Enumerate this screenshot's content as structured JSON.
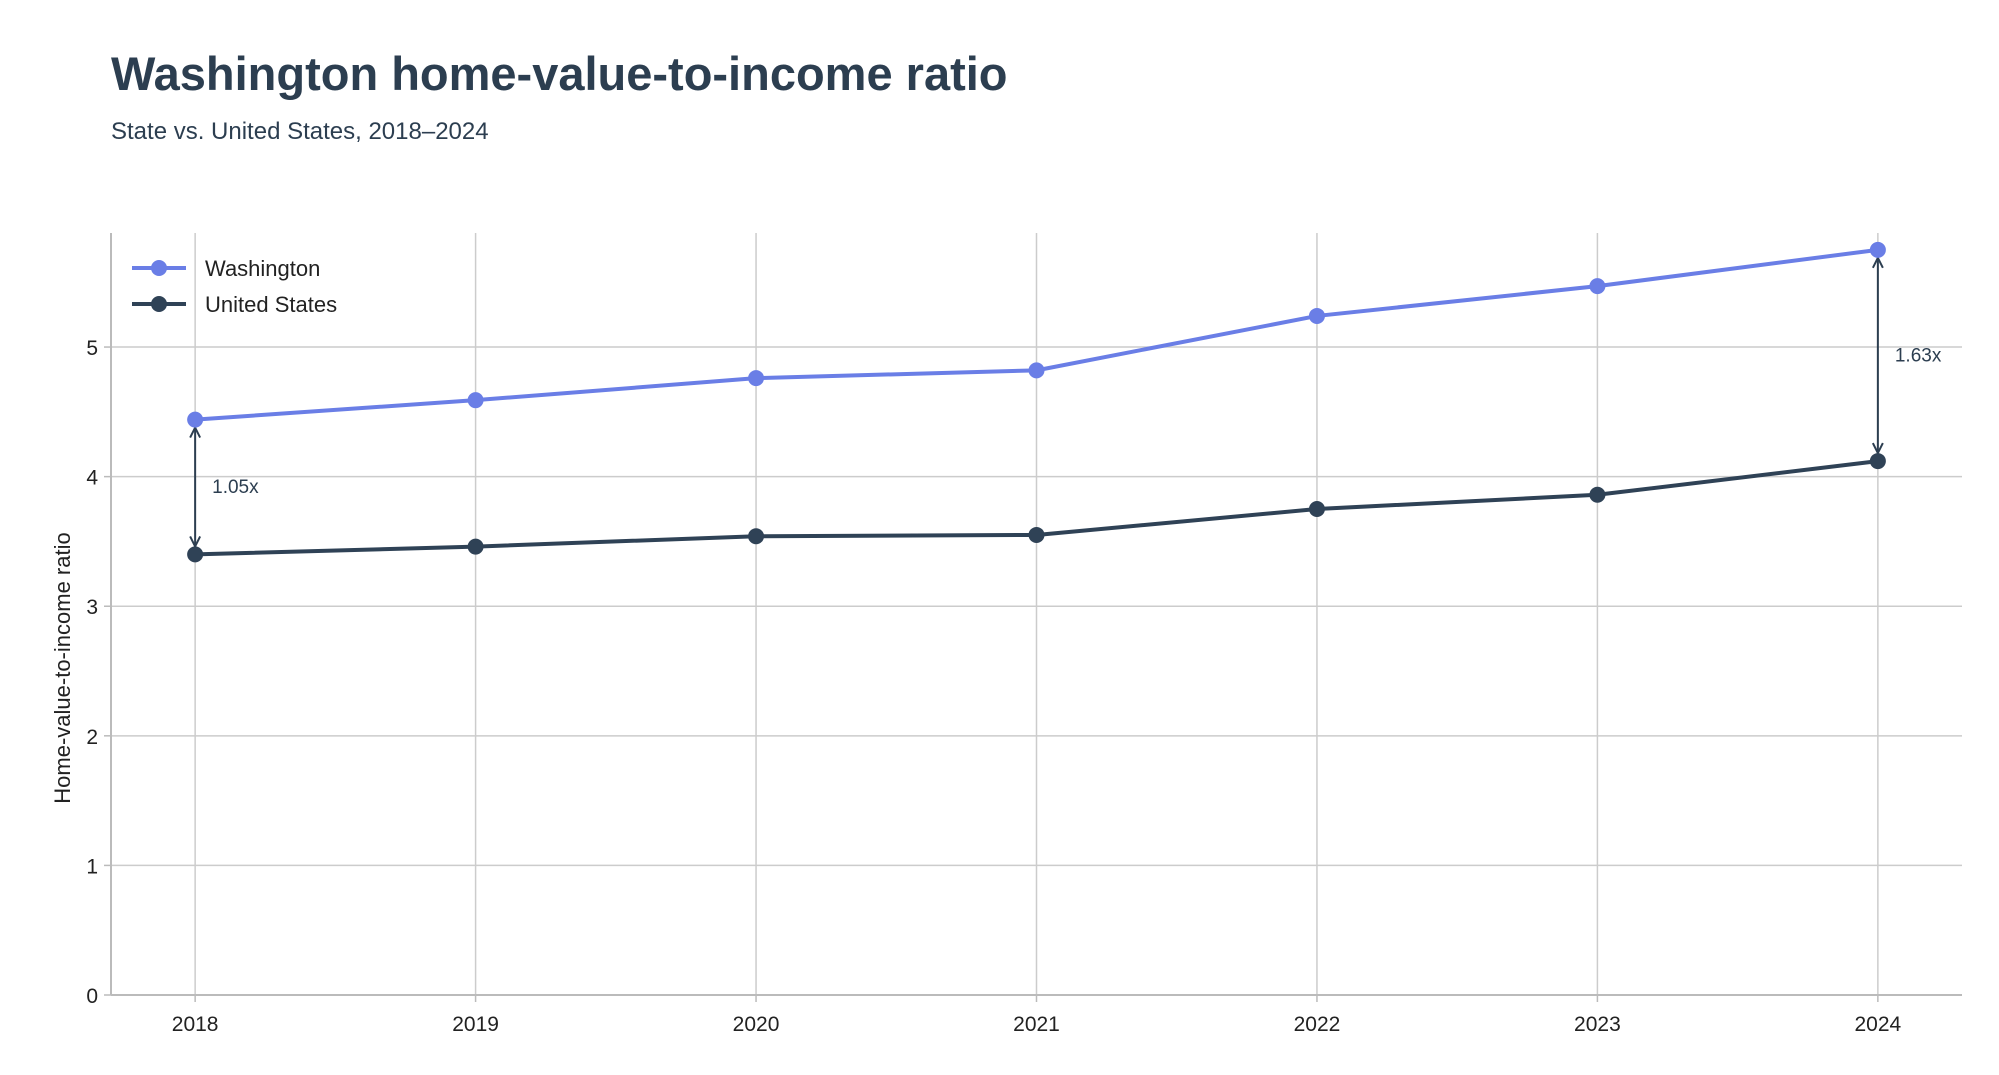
{
  "chart_data": {
    "type": "line",
    "title": "Washington home-value-to-income ratio",
    "subtitle": "State vs. United States, 2018–2024",
    "xlabel": "",
    "ylabel": "Home-value-to-income ratio",
    "x": [
      "2018",
      "2019",
      "2020",
      "2021",
      "2022",
      "2023",
      "2024"
    ],
    "xlim": [
      2017.7,
      2024.3
    ],
    "ylim": [
      0,
      5.88
    ],
    "yticks": [
      0,
      1,
      2,
      3,
      4,
      5
    ],
    "grid": true,
    "legend_position": "top-left",
    "series": [
      {
        "name": "Washington",
        "color": "#6a7ee6",
        "values": [
          4.44,
          4.59,
          4.76,
          4.82,
          5.24,
          5.47,
          5.75
        ]
      },
      {
        "name": "United States",
        "color": "#2f4256",
        "values": [
          3.4,
          3.46,
          3.54,
          3.55,
          3.75,
          3.86,
          4.12
        ]
      }
    ],
    "annotations": [
      {
        "x": "2018",
        "from": 3.4,
        "to": 4.44,
        "label": "1.05x"
      },
      {
        "x": "2024",
        "from": 4.12,
        "to": 5.75,
        "label": "1.63x"
      }
    ],
    "colors": {
      "title": "#2c3e50",
      "grid": "#cccccc",
      "axis": "#bbbbbb",
      "annotation": "#2c3e50"
    }
  }
}
